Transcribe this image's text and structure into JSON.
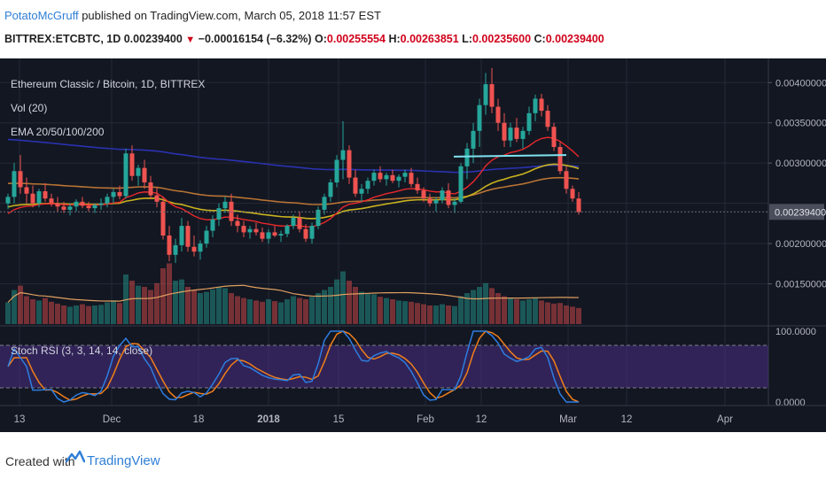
{
  "header": {
    "author": "PotatoMcGruff",
    "published_text": "published on TradingView.com, March 05, 2018 11:57 EST",
    "symbol": "BITTREX:ETCBTC, 1D",
    "last": "0.00239400",
    "change": "−0.00016154 (−6.32%)",
    "o_label": "O:",
    "o_value": "0.00255554",
    "h_label": "H:",
    "h_value": "0.00263851",
    "l_label": "L:",
    "l_value": "0.00235600",
    "c_label": "C:",
    "c_value": "0.00239400"
  },
  "legend": {
    "title": "Ethereum Classic / Bitcoin, 1D, BITTREX",
    "vol": "Vol (20)",
    "ema": "EMA 20/50/100/200",
    "stoch": "Stoch RSI (3, 3, 14, 14, close)"
  },
  "footer": {
    "created_with": "Created with",
    "brand": "TradingView"
  },
  "colors": {
    "bg": "#131722",
    "grid": "#242836",
    "up": "#26a69a",
    "down": "#ef5350",
    "ema20": "#e8282b",
    "ema50": "#c9b21e",
    "ema100": "#b87333",
    "ema200": "#2a32b0",
    "trendline": "#7fe3f0",
    "k": "#2d7de0",
    "d": "#f07f1a",
    "band": "#4b2e83",
    "axis_text": "#b2b5be",
    "last_badge": "#4a4e5a"
  },
  "chart_data": {
    "type": "candlestick",
    "price_axis": {
      "ticks": [
        "0.00400000",
        "0.00350000",
        "0.00300000",
        "0.00200000",
        "0.00150000"
      ],
      "last_price_label": "0.00239400",
      "range": [
        0.001,
        0.0043
      ]
    },
    "stoch_axis": {
      "ticks": [
        "100.0000",
        "0.0000"
      ],
      "upper_band": 80,
      "lower_band": 20
    },
    "time_axis": {
      "labels": [
        "13",
        "Dec",
        "18",
        "2018",
        "15",
        "Feb",
        "12",
        "Mar",
        "12",
        "Apr"
      ]
    },
    "candles": [
      [
        0.0025,
        0.00262,
        0.00243,
        0.00258
      ],
      [
        0.00258,
        0.003,
        0.0025,
        0.0029
      ],
      [
        0.0029,
        0.0031,
        0.00262,
        0.0027
      ],
      [
        0.0027,
        0.00282,
        0.0025,
        0.00262
      ],
      [
        0.00262,
        0.00272,
        0.00245,
        0.0025
      ],
      [
        0.0025,
        0.00268,
        0.00245,
        0.00265
      ],
      [
        0.00265,
        0.00275,
        0.00252,
        0.00256
      ],
      [
        0.00256,
        0.00262,
        0.00246,
        0.0025
      ],
      [
        0.0025,
        0.00258,
        0.0024,
        0.00246
      ],
      [
        0.00246,
        0.00252,
        0.00238,
        0.00242
      ],
      [
        0.00242,
        0.0025,
        0.00235,
        0.00246
      ],
      [
        0.00246,
        0.00255,
        0.0024,
        0.00252
      ],
      [
        0.00252,
        0.00258,
        0.00244,
        0.00247
      ],
      [
        0.00247,
        0.00252,
        0.0024,
        0.00244
      ],
      [
        0.00244,
        0.0025,
        0.00238,
        0.00248
      ],
      [
        0.00248,
        0.00256,
        0.00242,
        0.0025
      ],
      [
        0.0025,
        0.00262,
        0.00245,
        0.00258
      ],
      [
        0.00258,
        0.00268,
        0.0025,
        0.00264
      ],
      [
        0.00264,
        0.00272,
        0.00255,
        0.00259
      ],
      [
        0.00259,
        0.00318,
        0.00256,
        0.00312
      ],
      [
        0.00312,
        0.00322,
        0.00278,
        0.00284
      ],
      [
        0.00284,
        0.00298,
        0.00272,
        0.00294
      ],
      [
        0.00294,
        0.00304,
        0.00268,
        0.00276
      ],
      [
        0.00276,
        0.00284,
        0.00255,
        0.0026
      ],
      [
        0.0026,
        0.0027,
        0.00245,
        0.00252
      ],
      [
        0.00252,
        0.00258,
        0.00205,
        0.0021
      ],
      [
        0.0021,
        0.00222,
        0.00178,
        0.00186
      ],
      [
        0.00186,
        0.00206,
        0.00176,
        0.00198
      ],
      [
        0.00198,
        0.00232,
        0.0019,
        0.00222
      ],
      [
        0.00222,
        0.00228,
        0.0019,
        0.00196
      ],
      [
        0.00196,
        0.0021,
        0.00184,
        0.0019
      ],
      [
        0.0019,
        0.00204,
        0.0018,
        0.002
      ],
      [
        0.002,
        0.00222,
        0.00195,
        0.00216
      ],
      [
        0.00216,
        0.00235,
        0.00208,
        0.0023
      ],
      [
        0.0023,
        0.0025,
        0.00222,
        0.00244
      ],
      [
        0.00244,
        0.00258,
        0.00238,
        0.00252
      ],
      [
        0.00252,
        0.00262,
        0.00222,
        0.00228
      ],
      [
        0.00228,
        0.00236,
        0.00214,
        0.00222
      ],
      [
        0.00222,
        0.00228,
        0.00208,
        0.00214
      ],
      [
        0.00214,
        0.00222,
        0.00206,
        0.00218
      ],
      [
        0.00218,
        0.00226,
        0.0021,
        0.00214
      ],
      [
        0.00214,
        0.0022,
        0.00202,
        0.00206
      ],
      [
        0.00206,
        0.00218,
        0.002,
        0.00214
      ],
      [
        0.00214,
        0.00222,
        0.00208,
        0.0021
      ],
      [
        0.0021,
        0.00216,
        0.00202,
        0.00212
      ],
      [
        0.00212,
        0.00224,
        0.00208,
        0.00222
      ],
      [
        0.00222,
        0.00236,
        0.00218,
        0.00232
      ],
      [
        0.00232,
        0.0024,
        0.00214,
        0.00218
      ],
      [
        0.00218,
        0.00224,
        0.00202,
        0.00206
      ],
      [
        0.00206,
        0.00226,
        0.002,
        0.00222
      ],
      [
        0.00222,
        0.00246,
        0.00218,
        0.00242
      ],
      [
        0.00242,
        0.00262,
        0.00236,
        0.00258
      ],
      [
        0.00258,
        0.0028,
        0.00252,
        0.00276
      ],
      [
        0.00276,
        0.0031,
        0.0027,
        0.00304
      ],
      [
        0.00304,
        0.00352,
        0.0028,
        0.00316
      ],
      [
        0.00316,
        0.00322,
        0.00274,
        0.00282
      ],
      [
        0.00282,
        0.00292,
        0.00258,
        0.00262
      ],
      [
        0.00262,
        0.00274,
        0.00252,
        0.00268
      ],
      [
        0.00268,
        0.00282,
        0.00262,
        0.00278
      ],
      [
        0.00278,
        0.00292,
        0.00272,
        0.00288
      ],
      [
        0.00288,
        0.00296,
        0.00276,
        0.0028
      ],
      [
        0.0028,
        0.00288,
        0.00272,
        0.00285
      ],
      [
        0.00285,
        0.00292,
        0.00275,
        0.00278
      ],
      [
        0.00278,
        0.00286,
        0.0027,
        0.00283
      ],
      [
        0.00283,
        0.00292,
        0.00276,
        0.00288
      ],
      [
        0.00288,
        0.00294,
        0.0027,
        0.00274
      ],
      [
        0.00274,
        0.00282,
        0.00262,
        0.00266
      ],
      [
        0.00266,
        0.0027,
        0.00252,
        0.00256
      ],
      [
        0.00256,
        0.00262,
        0.00246,
        0.0025
      ],
      [
        0.0025,
        0.00258,
        0.0024,
        0.00254
      ],
      [
        0.00254,
        0.0027,
        0.0025,
        0.00266
      ],
      [
        0.00266,
        0.00275,
        0.00244,
        0.00248
      ],
      [
        0.00248,
        0.00256,
        0.00238,
        0.00252
      ],
      [
        0.00252,
        0.003,
        0.0025,
        0.00296
      ],
      [
        0.00296,
        0.00325,
        0.0028,
        0.00318
      ],
      [
        0.00318,
        0.0035,
        0.003,
        0.0034
      ],
      [
        0.0034,
        0.0038,
        0.0032,
        0.00372
      ],
      [
        0.00372,
        0.00412,
        0.0036,
        0.00398
      ],
      [
        0.00398,
        0.00418,
        0.00362,
        0.0037
      ],
      [
        0.0037,
        0.0038,
        0.0034,
        0.0035
      ],
      [
        0.0035,
        0.00362,
        0.0032,
        0.00328
      ],
      [
        0.00328,
        0.0035,
        0.0032,
        0.00344
      ],
      [
        0.00344,
        0.00356,
        0.00326,
        0.0033
      ],
      [
        0.0033,
        0.00345,
        0.00318,
        0.0034
      ],
      [
        0.0034,
        0.0037,
        0.00335,
        0.00362
      ],
      [
        0.00362,
        0.00385,
        0.00352,
        0.0038
      ],
      [
        0.0038,
        0.00386,
        0.00358,
        0.00365
      ],
      [
        0.00365,
        0.00372,
        0.0034,
        0.00345
      ],
      [
        0.00345,
        0.0035,
        0.00315,
        0.0032
      ],
      [
        0.0032,
        0.00326,
        0.00286,
        0.0029
      ],
      [
        0.0029,
        0.00296,
        0.00262,
        0.00268
      ],
      [
        0.00268,
        0.00272,
        0.00252,
        0.00256
      ],
      [
        0.00256,
        0.00264,
        0.00236,
        0.00239
      ]
    ],
    "volumes": [
      0.35,
      0.55,
      0.62,
      0.45,
      0.4,
      0.38,
      0.42,
      0.36,
      0.33,
      0.3,
      0.28,
      0.3,
      0.32,
      0.29,
      0.3,
      0.31,
      0.35,
      0.38,
      0.34,
      0.8,
      0.7,
      0.62,
      0.6,
      0.55,
      0.66,
      0.9,
      0.98,
      0.7,
      0.72,
      0.6,
      0.55,
      0.5,
      0.52,
      0.56,
      0.6,
      0.58,
      0.5,
      0.45,
      0.42,
      0.4,
      0.38,
      0.36,
      0.4,
      0.37,
      0.35,
      0.4,
      0.45,
      0.42,
      0.4,
      0.44,
      0.5,
      0.55,
      0.6,
      0.72,
      0.85,
      0.7,
      0.6,
      0.52,
      0.5,
      0.48,
      0.44,
      0.42,
      0.4,
      0.38,
      0.37,
      0.36,
      0.34,
      0.32,
      0.3,
      0.3,
      0.32,
      0.3,
      0.29,
      0.45,
      0.5,
      0.55,
      0.6,
      0.66,
      0.58,
      0.5,
      0.45,
      0.42,
      0.4,
      0.38,
      0.4,
      0.42,
      0.38,
      0.35,
      0.33,
      0.34,
      0.3,
      0.28,
      0.26
    ]
  }
}
